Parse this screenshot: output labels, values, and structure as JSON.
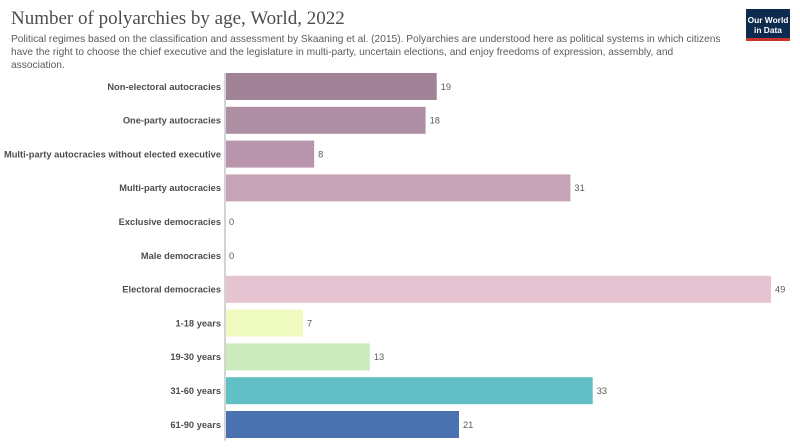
{
  "header": {
    "title": "Number of polyarchies by age, World, 2022",
    "subtitle": "Political regimes based on the classification and assessment by Skaaning et al. (2015). Polyarchies are understood here as political systems in which citizens have the right to choose the chief executive and the legislature in multi-party, uncertain elections, and enjoy freedoms of expression, assembly, and association.",
    "logo_line1": "Our World",
    "logo_line2": "in Data",
    "logo_colors": {
      "background": "#0d2a4f",
      "accent": "#c7312e"
    }
  },
  "chart_data": {
    "type": "bar",
    "orientation": "horizontal",
    "title": "Number of polyarchies by age, World, 2022",
    "categories": [
      "Non-electoral autocracies",
      "One-party autocracies",
      "Multi-party autocracies without elected executive",
      "Multi-party autocracies",
      "Exclusive democracies",
      "Male democracies",
      "Electoral democracies",
      "1-18 years",
      "19-30 years",
      "31-60 years",
      "61-90 years"
    ],
    "values": [
      19,
      18,
      8,
      31,
      0,
      0,
      49,
      7,
      13,
      33,
      21
    ],
    "colors": [
      "#a08397",
      "#ad8ea3",
      "#b995ad",
      "#c7a3b8",
      "#d4b1c4",
      "#dbbccc",
      "#e5c3d0",
      "#f0fbc0",
      "#cbebbd",
      "#62bfc6",
      "#4a72b0"
    ],
    "xlim": [
      0,
      49
    ],
    "grid": false,
    "data_labels": true
  }
}
